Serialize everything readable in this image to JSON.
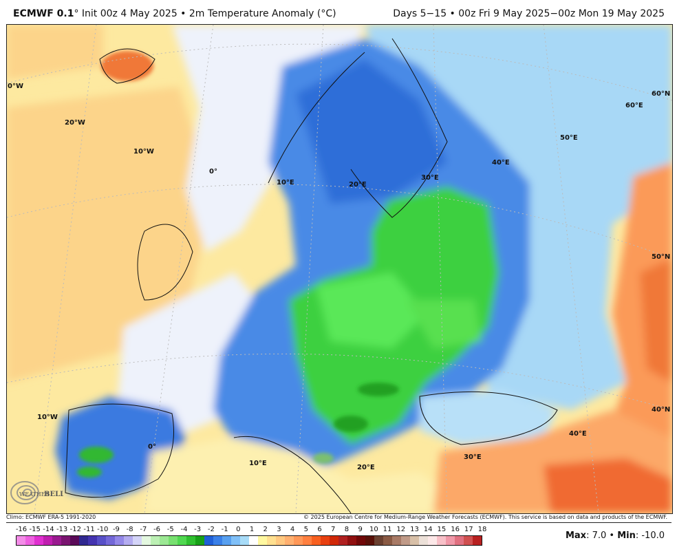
{
  "header": {
    "model": "ECMWF 0.1",
    "model_suffix": "° Init 00z 4 May 2025 • 2m Temperature Anomaly (°C)",
    "period": "Days 5−15 • 00z Fri 9 May 2025−00z Mon 19 May 2025"
  },
  "map": {
    "grid_labels": [
      "0°W",
      "20°W",
      "10°W",
      "0°",
      "10°E",
      "20°E",
      "30°E",
      "40°E",
      "50°E",
      "60°E",
      "60°N",
      "50°N",
      "40°N",
      "40°E",
      "30°E",
      "20°E",
      "10°E",
      "0°",
      "10°W"
    ],
    "logo_text": "WeatherBELL Analytics LLC"
  },
  "footer": {
    "climo": "Climo: ECMWF ERA-5 1991-2020",
    "copyright": "© 2025 European Centre for Medium-Range Weather Forecasts (ECMWF). This service is based on data and products of the ECMWF."
  },
  "colorbar": {
    "labels": [
      "-16",
      "-15",
      "-14",
      "-13",
      "-12",
      "-11",
      "-10",
      "-9",
      "-8",
      "-7",
      "-6",
      "-5",
      "-4",
      "-3",
      "-2",
      "-1",
      "0",
      "1",
      "2",
      "3",
      "4",
      "5",
      "6",
      "7",
      "8",
      "9",
      "10",
      "11",
      "12",
      "13",
      "14",
      "15",
      "16",
      "17",
      "18"
    ],
    "colors": [
      "#f48ce8",
      "#ee60e0",
      "#e030d0",
      "#c01fb0",
      "#9a1a90",
      "#7a1470",
      "#5a0a58",
      "#302890",
      "#4434b0",
      "#5850c8",
      "#7468d8",
      "#9488e8",
      "#b4acf0",
      "#d4d4f8",
      "#e4f8e0",
      "#bcf0b4",
      "#9ce894",
      "#78e070",
      "#50d850",
      "#30c030",
      "#18a018",
      "#2060d8",
      "#3a80e8",
      "#58a0f0",
      "#80c0f8",
      "#a8dcf8",
      "#ffffff",
      "#fff8a0",
      "#ffe090",
      "#ffc880",
      "#ffb070",
      "#ff9858",
      "#ff8040",
      "#f86020",
      "#e84010",
      "#d02808",
      "#b02020",
      "#901010",
      "#700808",
      "#581008",
      "#6a4030",
      "#8a5a44",
      "#a87a66",
      "#c09a88",
      "#d8c0a8",
      "#ece0d8",
      "#fce8e8",
      "#f8c0c8",
      "#f098a8",
      "#e07080",
      "#d05050",
      "#b82020"
    ],
    "max_label": "Max",
    "max_value": ": 7.0 • ",
    "min_label": "Min",
    "min_value": ": -10.0"
  }
}
